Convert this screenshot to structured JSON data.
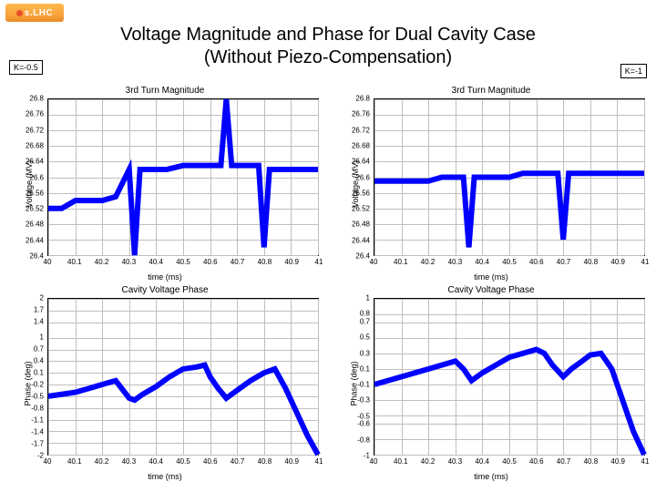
{
  "logo": {
    "text": "s.LHC"
  },
  "title_line1": "Voltage Magnitude and Phase for Dual Cavity Case",
  "title_line2": "(Without Piezo-Compensation)",
  "k_left": "K=-0.5",
  "k_right": "K=-1",
  "grid_color": "#bfbfbf",
  "line_color": "#0000ff",
  "line_width": 1,
  "panels": {
    "tl": {
      "title": "3rd Turn Magnitude",
      "xlabel": "time (ms)",
      "ylabel": "Voltage (MV)",
      "xlim": [
        40,
        41
      ],
      "ylim": [
        26.4,
        26.8
      ],
      "xticks": [
        40,
        40.1,
        40.2,
        40.3,
        40.4,
        40.5,
        40.6,
        40.7,
        40.8,
        40.9,
        41
      ],
      "yticks": [
        26.4,
        26.44,
        26.48,
        26.52,
        26.56,
        26.6,
        26.64,
        26.68,
        26.72,
        26.76,
        26.8
      ],
      "series": [
        [
          40.0,
          26.52
        ],
        [
          40.05,
          26.52
        ],
        [
          40.1,
          26.54
        ],
        [
          40.15,
          26.54
        ],
        [
          40.2,
          26.54
        ],
        [
          40.25,
          26.55
        ],
        [
          40.3,
          26.62
        ],
        [
          40.32,
          26.4
        ],
        [
          40.34,
          26.62
        ],
        [
          40.38,
          26.62
        ],
        [
          40.4,
          26.62
        ],
        [
          40.44,
          26.62
        ],
        [
          40.5,
          26.63
        ],
        [
          40.55,
          26.63
        ],
        [
          40.6,
          26.63
        ],
        [
          40.64,
          26.63
        ],
        [
          40.66,
          26.8
        ],
        [
          40.68,
          26.63
        ],
        [
          40.7,
          26.63
        ],
        [
          40.75,
          26.63
        ],
        [
          40.78,
          26.63
        ],
        [
          40.8,
          26.42
        ],
        [
          40.82,
          26.62
        ],
        [
          40.88,
          26.62
        ],
        [
          40.95,
          26.62
        ],
        [
          41.0,
          26.62
        ]
      ]
    },
    "tr": {
      "title": "3rd Turn Magnitude",
      "xlabel": "time (ms)",
      "ylabel": "Voltage (MV)",
      "xlim": [
        40,
        41
      ],
      "ylim": [
        26.4,
        26.8
      ],
      "xticks": [
        40,
        40.1,
        40.2,
        40.3,
        40.4,
        40.5,
        40.6,
        40.7,
        40.8,
        40.9,
        41
      ],
      "yticks": [
        26.4,
        26.44,
        26.48,
        26.52,
        26.56,
        26.6,
        26.64,
        26.68,
        26.72,
        26.76,
        26.8
      ],
      "series": [
        [
          40.0,
          26.59
        ],
        [
          40.05,
          26.59
        ],
        [
          40.1,
          26.59
        ],
        [
          40.15,
          26.59
        ],
        [
          40.2,
          26.59
        ],
        [
          40.25,
          26.6
        ],
        [
          40.3,
          26.6
        ],
        [
          40.33,
          26.6
        ],
        [
          40.35,
          26.42
        ],
        [
          40.37,
          26.6
        ],
        [
          40.4,
          26.6
        ],
        [
          40.45,
          26.6
        ],
        [
          40.5,
          26.6
        ],
        [
          40.55,
          26.61
        ],
        [
          40.6,
          26.61
        ],
        [
          40.65,
          26.61
        ],
        [
          40.68,
          26.61
        ],
        [
          40.7,
          26.44
        ],
        [
          40.72,
          26.61
        ],
        [
          40.75,
          26.61
        ],
        [
          40.8,
          26.61
        ],
        [
          40.85,
          26.61
        ],
        [
          40.9,
          26.61
        ],
        [
          40.95,
          26.61
        ],
        [
          41.0,
          26.61
        ]
      ]
    },
    "bl": {
      "title": "Cavity Voltage Phase",
      "xlabel": "time (ms)",
      "ylabel": "Phase (deg)",
      "xlim": [
        40,
        41
      ],
      "ylim": [
        -2,
        2
      ],
      "xticks": [
        40,
        40.1,
        40.2,
        40.3,
        40.4,
        40.5,
        40.6,
        40.7,
        40.8,
        40.9,
        41
      ],
      "yticks": [
        -2,
        -1.7,
        -1.4,
        -1.1,
        -0.8,
        -0.5,
        -0.2,
        0.1,
        0.4,
        0.7,
        1,
        1.4,
        1.7,
        2
      ],
      "series": [
        [
          40.0,
          -0.5
        ],
        [
          40.05,
          -0.45
        ],
        [
          40.1,
          -0.4
        ],
        [
          40.15,
          -0.3
        ],
        [
          40.2,
          -0.2
        ],
        [
          40.25,
          -0.1
        ],
        [
          40.3,
          -0.55
        ],
        [
          40.32,
          -0.6
        ],
        [
          40.35,
          -0.45
        ],
        [
          40.4,
          -0.25
        ],
        [
          40.45,
          0.0
        ],
        [
          40.5,
          0.2
        ],
        [
          40.55,
          0.25
        ],
        [
          40.58,
          0.3
        ],
        [
          40.6,
          0.0
        ],
        [
          40.63,
          -0.3
        ],
        [
          40.66,
          -0.55
        ],
        [
          40.7,
          -0.35
        ],
        [
          40.75,
          -0.1
        ],
        [
          40.8,
          0.1
        ],
        [
          40.84,
          0.2
        ],
        [
          40.88,
          -0.3
        ],
        [
          40.92,
          -0.9
        ],
        [
          40.96,
          -1.5
        ],
        [
          41.0,
          -2.0
        ]
      ]
    },
    "br": {
      "title": "Cavity Voltage Phase",
      "xlabel": "time (ms)",
      "ylabel": "Phase (deg)",
      "xlim": [
        40,
        41
      ],
      "ylim": [
        -1,
        1
      ],
      "xticks": [
        40,
        40.1,
        40.2,
        40.3,
        40.4,
        40.5,
        40.6,
        40.7,
        40.8,
        40.9,
        41
      ],
      "yticks": [
        -1,
        -0.8,
        -0.6,
        -0.5,
        -0.3,
        -0.1,
        0.1,
        0.3,
        0.5,
        0.7,
        0.8,
        1
      ],
      "series": [
        [
          40.0,
          -0.1
        ],
        [
          40.05,
          -0.05
        ],
        [
          40.1,
          0.0
        ],
        [
          40.15,
          0.05
        ],
        [
          40.2,
          0.1
        ],
        [
          40.25,
          0.15
        ],
        [
          40.3,
          0.2
        ],
        [
          40.33,
          0.1
        ],
        [
          40.36,
          -0.05
        ],
        [
          40.4,
          0.05
        ],
        [
          40.45,
          0.15
        ],
        [
          40.5,
          0.25
        ],
        [
          40.55,
          0.3
        ],
        [
          40.6,
          0.35
        ],
        [
          40.63,
          0.3
        ],
        [
          40.66,
          0.15
        ],
        [
          40.7,
          0.0
        ],
        [
          40.73,
          0.1
        ],
        [
          40.77,
          0.2
        ],
        [
          40.8,
          0.28
        ],
        [
          40.84,
          0.3
        ],
        [
          40.88,
          0.1
        ],
        [
          40.92,
          -0.3
        ],
        [
          40.96,
          -0.7
        ],
        [
          41.0,
          -1.0
        ]
      ]
    }
  }
}
